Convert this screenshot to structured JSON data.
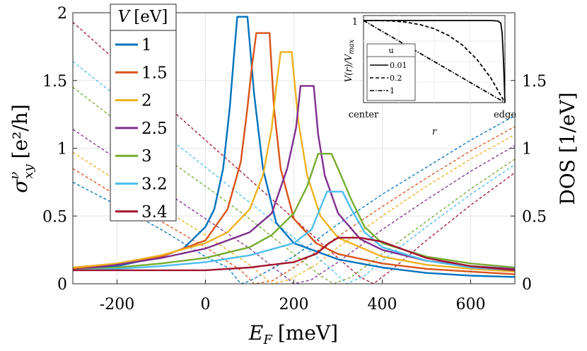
{
  "chart_data": {
    "type": "line",
    "xlabel_main": "E",
    "xlabel_sub": "F",
    "xlabel_unit": "[meV]",
    "ylabel_left_sym": "σ",
    "ylabel_left_sup": "ν",
    "ylabel_left_sub": "xy",
    "ylabel_left_unit": "[e²/h]",
    "ylabel_right": "DOS [1/eV]",
    "xlim": [
      -300,
      700
    ],
    "ylim_left": [
      0,
      2
    ],
    "ylim_right": [
      0,
      2
    ],
    "xticks": [
      -200,
      0,
      200,
      400,
      600
    ],
    "xtick_labels": [
      "-200",
      "0",
      "200",
      "400",
      "600"
    ],
    "yticks_left": [
      0,
      0.5,
      1,
      1.5,
      2
    ],
    "ytick_labels_left": [
      "0",
      "0.5",
      "1",
      "1.5",
      "2"
    ],
    "yticks_right": [
      0,
      0.5,
      1,
      1.5
    ],
    "ytick_labels_right": [
      "0",
      "0.5",
      "1",
      "1.5"
    ],
    "legend": {
      "title_sym": "V",
      "title_unit": "[eV]",
      "position": "top-left"
    },
    "series": [
      {
        "name": "1",
        "color": "#0072BD",
        "sigma": [
          [
            -300,
            0.1
          ],
          [
            -200,
            0.13
          ],
          [
            -100,
            0.2
          ],
          [
            -50,
            0.26
          ],
          [
            0,
            0.42
          ],
          [
            20,
            0.55
          ],
          [
            40,
            0.85
          ],
          [
            55,
            1.3
          ],
          [
            65,
            1.7
          ],
          [
            72,
            1.97
          ],
          [
            95,
            1.97
          ],
          [
            110,
            1.4
          ],
          [
            130,
            0.85
          ],
          [
            160,
            0.45
          ],
          [
            200,
            0.3
          ],
          [
            300,
            0.18
          ],
          [
            400,
            0.12
          ],
          [
            500,
            0.08
          ],
          [
            600,
            0.06
          ],
          [
            700,
            0.05
          ]
        ],
        "dos": [
          [
            -300,
            0.75
          ],
          [
            -200,
            0.58
          ],
          [
            -100,
            0.4
          ],
          [
            0,
            0.2
          ],
          [
            50,
            0.12
          ],
          [
            80,
            0.0
          ],
          [
            100,
            0.02
          ],
          [
            200,
            0.2
          ],
          [
            300,
            0.44
          ],
          [
            400,
            0.66
          ],
          [
            500,
            0.86
          ],
          [
            600,
            1.06
          ],
          [
            700,
            1.24
          ]
        ]
      },
      {
        "name": "1.5",
        "color": "#D95319",
        "sigma": [
          [
            -300,
            0.11
          ],
          [
            -200,
            0.14
          ],
          [
            -100,
            0.2
          ],
          [
            0,
            0.32
          ],
          [
            50,
            0.55
          ],
          [
            80,
            0.9
          ],
          [
            95,
            1.3
          ],
          [
            105,
            1.6
          ],
          [
            115,
            1.85
          ],
          [
            145,
            1.85
          ],
          [
            155,
            1.3
          ],
          [
            170,
            0.85
          ],
          [
            200,
            0.48
          ],
          [
            250,
            0.3
          ],
          [
            300,
            0.22
          ],
          [
            400,
            0.15
          ],
          [
            500,
            0.11
          ],
          [
            600,
            0.09
          ],
          [
            700,
            0.07
          ]
        ],
        "dos": [
          [
            -300,
            0.85
          ],
          [
            -200,
            0.65
          ],
          [
            -100,
            0.46
          ],
          [
            0,
            0.27
          ],
          [
            80,
            0.1
          ],
          [
            110,
            0.0
          ],
          [
            150,
            0.02
          ],
          [
            200,
            0.12
          ],
          [
            300,
            0.35
          ],
          [
            400,
            0.57
          ],
          [
            500,
            0.78
          ],
          [
            600,
            0.98
          ],
          [
            700,
            1.16
          ]
        ]
      },
      {
        "name": "2",
        "color": "#EDB120",
        "sigma": [
          [
            -300,
            0.12
          ],
          [
            -200,
            0.15
          ],
          [
            -100,
            0.21
          ],
          [
            0,
            0.3
          ],
          [
            50,
            0.38
          ],
          [
            100,
            0.55
          ],
          [
            130,
            0.8
          ],
          [
            150,
            1.15
          ],
          [
            160,
            1.45
          ],
          [
            170,
            1.71
          ],
          [
            195,
            1.71
          ],
          [
            210,
            1.2
          ],
          [
            230,
            0.8
          ],
          [
            260,
            0.5
          ],
          [
            300,
            0.34
          ],
          [
            400,
            0.2
          ],
          [
            500,
            0.14
          ],
          [
            600,
            0.11
          ],
          [
            700,
            0.09
          ]
        ],
        "dos": [
          [
            -300,
            0.97
          ],
          [
            -200,
            0.76
          ],
          [
            -100,
            0.56
          ],
          [
            0,
            0.36
          ],
          [
            100,
            0.14
          ],
          [
            150,
            0.0
          ],
          [
            190,
            0.03
          ],
          [
            250,
            0.14
          ],
          [
            300,
            0.27
          ],
          [
            400,
            0.5
          ],
          [
            500,
            0.72
          ],
          [
            600,
            0.92
          ],
          [
            700,
            1.1
          ]
        ]
      },
      {
        "name": "2.5",
        "color": "#7E2F8E",
        "sigma": [
          [
            -300,
            0.1
          ],
          [
            -200,
            0.14
          ],
          [
            -100,
            0.19
          ],
          [
            0,
            0.26
          ],
          [
            100,
            0.38
          ],
          [
            150,
            0.52
          ],
          [
            185,
            0.85
          ],
          [
            205,
            1.15
          ],
          [
            215,
            1.46
          ],
          [
            245,
            1.46
          ],
          [
            255,
            1.1
          ],
          [
            270,
            0.8
          ],
          [
            300,
            0.52
          ],
          [
            350,
            0.33
          ],
          [
            400,
            0.25
          ],
          [
            500,
            0.17
          ],
          [
            600,
            0.13
          ],
          [
            700,
            0.11
          ]
        ],
        "dos": [
          [
            -300,
            1.14
          ],
          [
            -200,
            0.92
          ],
          [
            -100,
            0.7
          ],
          [
            0,
            0.48
          ],
          [
            100,
            0.26
          ],
          [
            170,
            0.08
          ],
          [
            200,
            0.0
          ],
          [
            240,
            0.03
          ],
          [
            300,
            0.16
          ],
          [
            400,
            0.4
          ],
          [
            500,
            0.62
          ],
          [
            600,
            0.83
          ],
          [
            700,
            1.02
          ]
        ]
      },
      {
        "name": "3",
        "color": "#77AC30",
        "sigma": [
          [
            -300,
            0.1
          ],
          [
            -200,
            0.12
          ],
          [
            -100,
            0.15
          ],
          [
            0,
            0.19
          ],
          [
            100,
            0.27
          ],
          [
            150,
            0.36
          ],
          [
            200,
            0.52
          ],
          [
            230,
            0.72
          ],
          [
            255,
            0.96
          ],
          [
            285,
            0.96
          ],
          [
            300,
            0.85
          ],
          [
            330,
            0.62
          ],
          [
            360,
            0.42
          ],
          [
            400,
            0.3
          ],
          [
            500,
            0.2
          ],
          [
            600,
            0.15
          ],
          [
            700,
            0.12
          ]
        ],
        "dos": [
          [
            -300,
            1.45
          ],
          [
            -200,
            1.2
          ],
          [
            -100,
            0.95
          ],
          [
            0,
            0.72
          ],
          [
            100,
            0.48
          ],
          [
            200,
            0.22
          ],
          [
            260,
            0.06
          ],
          [
            290,
            0.0
          ],
          [
            330,
            0.05
          ],
          [
            400,
            0.22
          ],
          [
            500,
            0.46
          ],
          [
            600,
            0.7
          ],
          [
            700,
            0.92
          ]
        ]
      },
      {
        "name": "3.2",
        "color": "#4DBEEE",
        "sigma": [
          [
            -300,
            0.1
          ],
          [
            -200,
            0.11
          ],
          [
            -100,
            0.13
          ],
          [
            0,
            0.16
          ],
          [
            100,
            0.21
          ],
          [
            200,
            0.3
          ],
          [
            240,
            0.4
          ],
          [
            265,
            0.6
          ],
          [
            275,
            0.68
          ],
          [
            310,
            0.68
          ],
          [
            330,
            0.55
          ],
          [
            360,
            0.38
          ],
          [
            400,
            0.27
          ],
          [
            500,
            0.17
          ],
          [
            600,
            0.12
          ],
          [
            700,
            0.1
          ]
        ],
        "dos": [
          [
            -300,
            1.64
          ],
          [
            -200,
            1.38
          ],
          [
            -100,
            1.12
          ],
          [
            0,
            0.86
          ],
          [
            100,
            0.6
          ],
          [
            200,
            0.34
          ],
          [
            280,
            0.12
          ],
          [
            320,
            0.0
          ],
          [
            360,
            0.06
          ],
          [
            400,
            0.17
          ],
          [
            500,
            0.42
          ],
          [
            600,
            0.66
          ],
          [
            700,
            0.88
          ]
        ]
      },
      {
        "name": "3.4",
        "color": "#A2142F",
        "sigma": [
          [
            -300,
            0.1
          ],
          [
            -200,
            0.1
          ],
          [
            -100,
            0.1
          ],
          [
            0,
            0.1
          ],
          [
            100,
            0.12
          ],
          [
            200,
            0.16
          ],
          [
            250,
            0.22
          ],
          [
            280,
            0.3
          ],
          [
            300,
            0.34
          ],
          [
            350,
            0.34
          ],
          [
            400,
            0.31
          ],
          [
            450,
            0.25
          ],
          [
            500,
            0.19
          ],
          [
            600,
            0.13
          ],
          [
            700,
            0.1
          ]
        ],
        "dos": [
          [
            -300,
            1.93
          ],
          [
            -200,
            1.64
          ],
          [
            -100,
            1.35
          ],
          [
            0,
            1.06
          ],
          [
            100,
            0.77
          ],
          [
            200,
            0.48
          ],
          [
            300,
            0.19
          ],
          [
            350,
            0.05
          ],
          [
            380,
            0.0
          ],
          [
            420,
            0.1
          ],
          [
            500,
            0.32
          ],
          [
            600,
            0.58
          ],
          [
            700,
            0.82
          ]
        ]
      }
    ],
    "inset": {
      "xlabel": "r",
      "ylabel": "V(r)/V",
      "ylabel_sub": "max",
      "xtick_left": "center",
      "xtick_right": "edge",
      "ytick_top": "1",
      "legend_title": "u",
      "series": [
        {
          "name": "0.01",
          "style": "solid",
          "points": [
            [
              0,
              1.0
            ],
            [
              0.9,
              1.0
            ],
            [
              0.95,
              0.995
            ],
            [
              0.97,
              0.97
            ],
            [
              0.98,
              0.85
            ],
            [
              0.99,
              0.5
            ],
            [
              1.0,
              0.0
            ]
          ]
        },
        {
          "name": "0.2",
          "style": "dashed",
          "points": [
            [
              0,
              1.0
            ],
            [
              0.1,
              1.0
            ],
            [
              0.2,
              0.995
            ],
            [
              0.3,
              0.98
            ],
            [
              0.4,
              0.95
            ],
            [
              0.5,
              0.9
            ],
            [
              0.6,
              0.82
            ],
            [
              0.7,
              0.7
            ],
            [
              0.8,
              0.53
            ],
            [
              0.9,
              0.3
            ],
            [
              1.0,
              0.0
            ]
          ]
        },
        {
          "name": "1",
          "style": "dashdot",
          "points": [
            [
              0,
              1.0
            ],
            [
              1.0,
              0.0
            ]
          ]
        }
      ]
    }
  }
}
